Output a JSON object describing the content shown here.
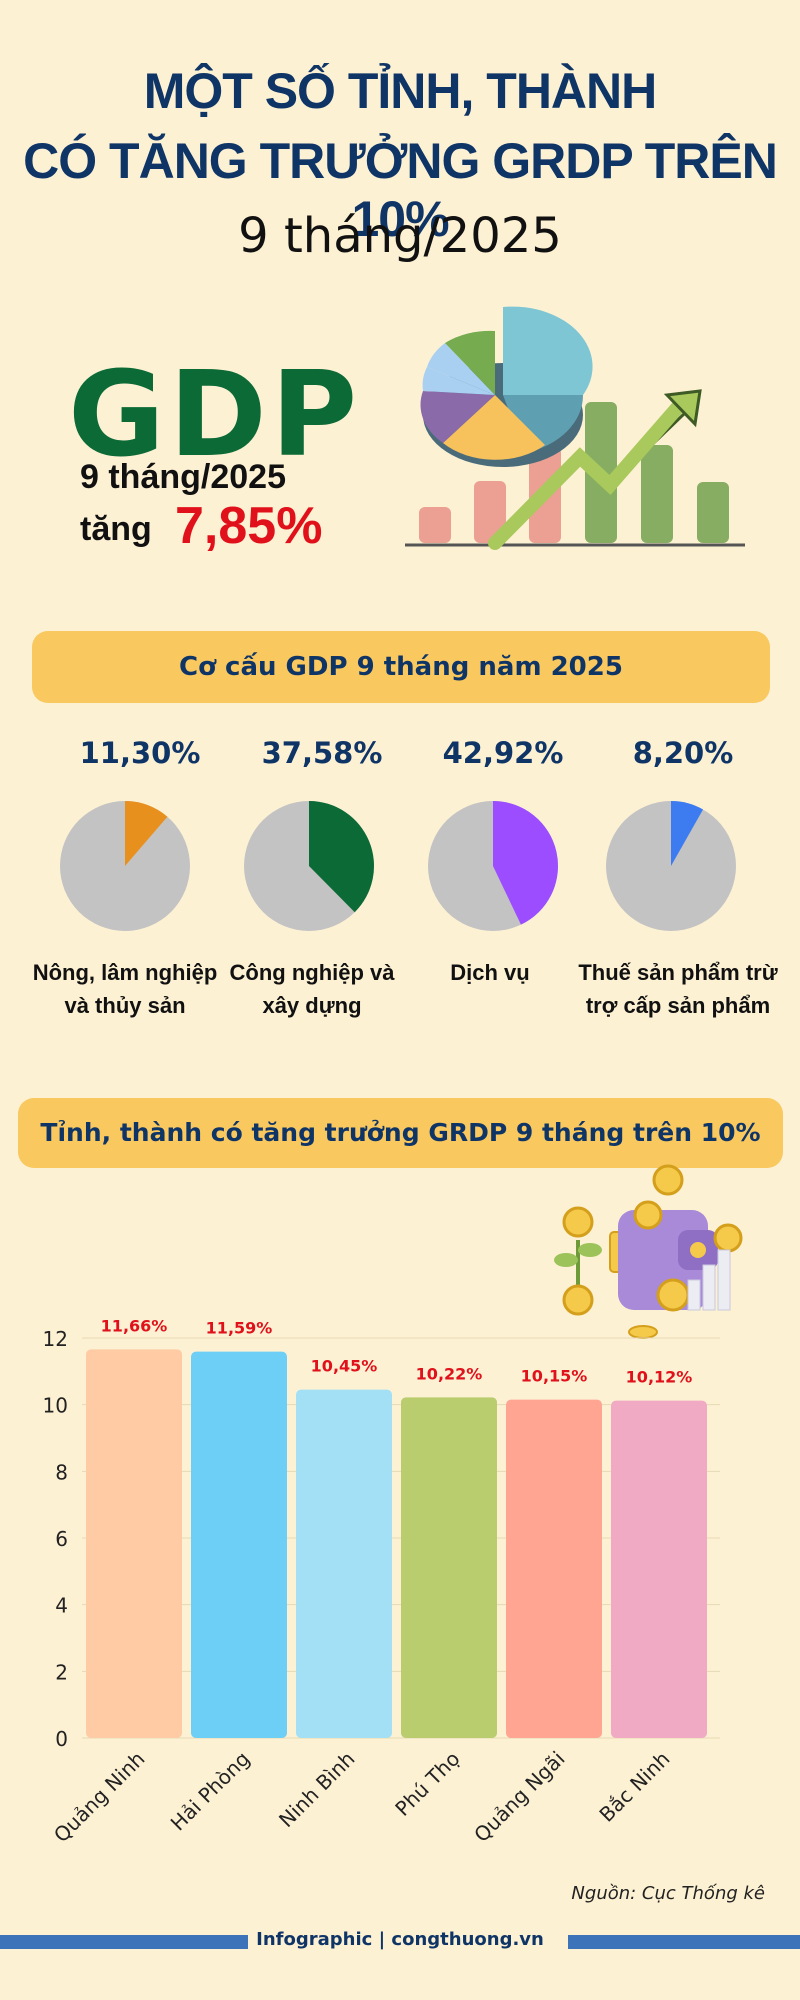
{
  "header": {
    "title_line1": "MỘT SỐ TỈNH, THÀNH",
    "title_line2": "CÓ TĂNG TRƯỞNG GRDP TRÊN 10%",
    "subtitle": "9 tháng/2025"
  },
  "gdp": {
    "logo": "GDP",
    "period": "9 tháng/2025",
    "increase_word": "tăng",
    "increase_value": "7,85%"
  },
  "colors": {
    "navy": "#0f3567",
    "green": "#0c6a36",
    "red": "#e0111a",
    "banner": "#f9c85e"
  },
  "structure": {
    "banner": "Cơ cấu GDP 9 tháng năm 2025",
    "items": [
      {
        "pct": "11,30%",
        "value": 11.3,
        "color": "#e8901e",
        "line1": "Nông, lâm nghiệp",
        "line2": "và thủy sản"
      },
      {
        "pct": "37,58%",
        "value": 37.58,
        "color": "#0c6a36",
        "line1": "Công nghiệp và",
        "line2": "xây dựng"
      },
      {
        "pct": "42,92%",
        "value": 42.92,
        "color": "#9b4dff",
        "line1": "Dịch vụ",
        "line2": ""
      },
      {
        "pct": "8,20%",
        "value": 8.2,
        "color": "#3d7cf0",
        "line1": "Thuế sản phẩm trừ",
        "line2": "trợ cấp sản phẩm"
      }
    ]
  },
  "grdp": {
    "banner": "Tỉnh, thành có tăng trưởng GRDP 9 tháng trên 10%"
  },
  "chart_data": {
    "type": "bar",
    "categories": [
      "Quảng Ninh",
      "Hải Phòng",
      "Ninh Bình",
      "Phú Thọ",
      "Quảng Ngãi",
      "Bắc Ninh"
    ],
    "values": [
      11.66,
      11.59,
      10.45,
      10.22,
      10.15,
      10.12
    ],
    "data_labels": [
      "11,66%",
      "11,59%",
      "10,45%",
      "10,22%",
      "10,15%",
      "10,12%"
    ],
    "colors": [
      "#ffcba4",
      "#6dcff6",
      "#a3e0f5",
      "#b9cc6e",
      "#ffa592",
      "#f0aac4"
    ],
    "yticks": [
      "0",
      "2",
      "4",
      "6",
      "8",
      "10",
      "12"
    ],
    "ylim": [
      0,
      12
    ],
    "grid": true,
    "label_color": "#e0111a"
  },
  "source": "Nguồn: Cục Thống kê",
  "footer": "Infographic | congthuong.vn"
}
